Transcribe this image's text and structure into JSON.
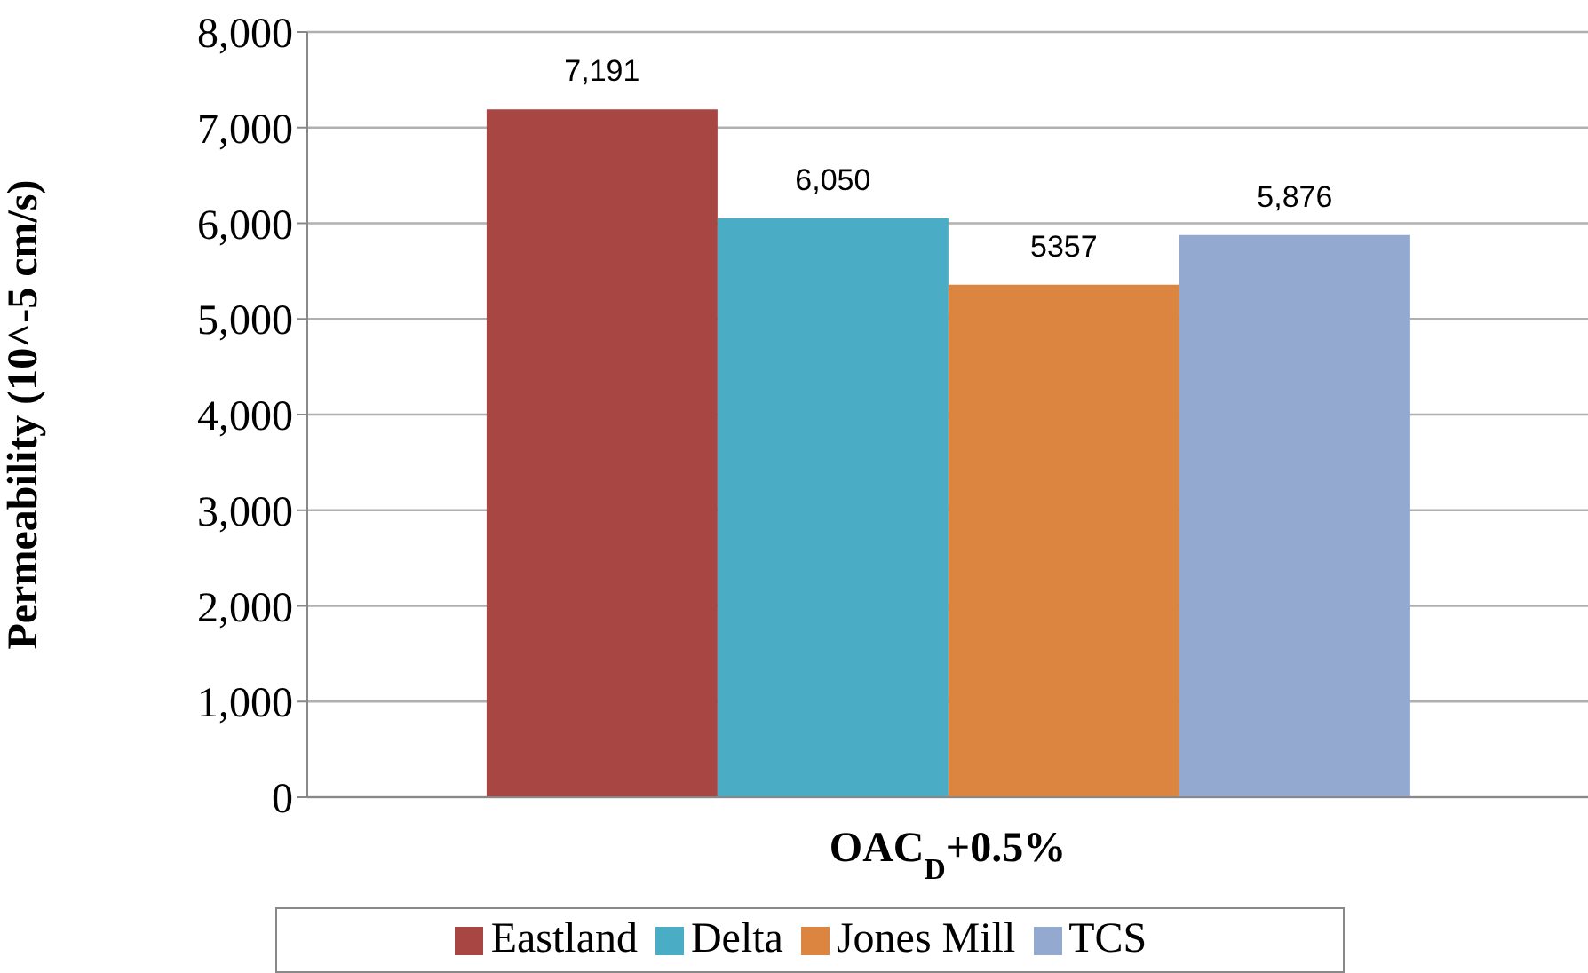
{
  "chart_data": {
    "type": "bar",
    "ylabel": "Permeability (10^-5 cm/s)",
    "categories": [
      "OAC$_{D}$+0.5%"
    ],
    "series": [
      {
        "name": "Eastland",
        "color": "#a84644",
        "values": [
          7191
        ],
        "value_labels": [
          "7,191"
        ]
      },
      {
        "name": "Delta",
        "color": "#4aacc5",
        "values": [
          6050
        ],
        "value_labels": [
          "6,050"
        ]
      },
      {
        "name": "Jones Mill",
        "color": "#db8541",
        "values": [
          5357
        ],
        "value_labels": [
          "5357"
        ]
      },
      {
        "name": "TCS",
        "color": "#93a9d0",
        "values": [
          5876
        ],
        "value_labels": [
          "5,876"
        ]
      }
    ],
    "ylim": [
      0,
      8000
    ],
    "yticks": [
      {
        "value": 0,
        "label": "0"
      },
      {
        "value": 1000,
        "label": "1,000"
      },
      {
        "value": 2000,
        "label": "2,000"
      },
      {
        "value": 3000,
        "label": "3,000"
      },
      {
        "value": 4000,
        "label": "4,000"
      },
      {
        "value": 5000,
        "label": "5,000"
      },
      {
        "value": 6000,
        "label": "6,000"
      },
      {
        "value": 7000,
        "label": "7,000"
      },
      {
        "value": 8000,
        "label": "8,000"
      }
    ],
    "grid": "y",
    "legend": "bottom"
  }
}
